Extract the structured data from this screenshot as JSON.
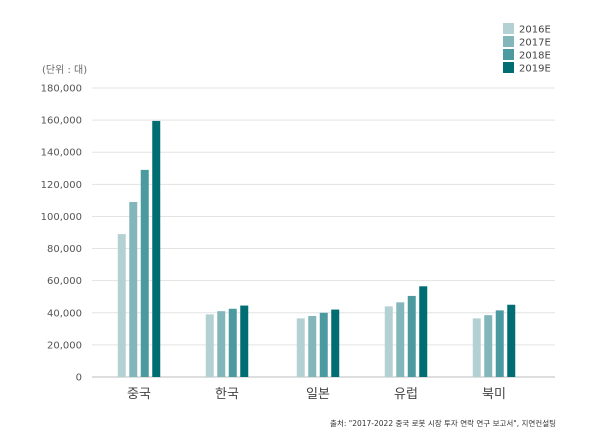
{
  "chart_data": {
    "type": "bar",
    "unit_label": "(단위 : 대)",
    "source": "출처: \"2017-2022 중국 로봇 시장 투자 연락 연구 보고서\", 지연컨설팅",
    "categories": [
      "중국",
      "한국",
      "일본",
      "유럽",
      "북미"
    ],
    "series": [
      {
        "name": "2016E",
        "color": "#b3d1d3",
        "values": [
          89000,
          39000,
          36500,
          44000,
          36500
        ]
      },
      {
        "name": "2017E",
        "color": "#82b6ba",
        "values": [
          109000,
          41000,
          38000,
          46500,
          38500
        ]
      },
      {
        "name": "2018E",
        "color": "#4a9a9f",
        "values": [
          129000,
          42500,
          40000,
          50500,
          41500
        ]
      },
      {
        "name": "2019E",
        "color": "#006d73",
        "values": [
          159500,
          44500,
          42000,
          56500,
          45000
        ]
      }
    ],
    "yticks": [
      "0",
      "20,000",
      "40,000",
      "60,000",
      "80,000",
      "100,000",
      "120,000",
      "140,000",
      "160,000",
      "180,000"
    ],
    "ylim": [
      0,
      180000
    ],
    "grid": true,
    "legend_position": "top-right"
  }
}
